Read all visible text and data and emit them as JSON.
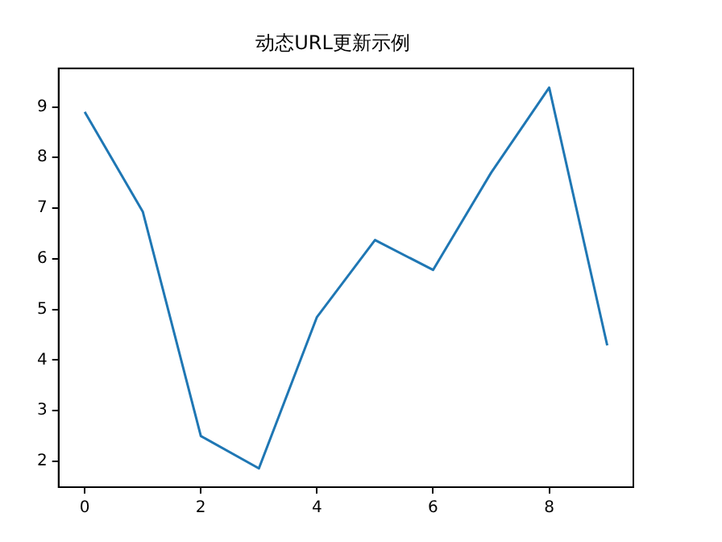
{
  "chart_data": {
    "type": "line",
    "title": "动态URL更新示例",
    "x": [
      0,
      1,
      2,
      3,
      4,
      5,
      6,
      7,
      8,
      9
    ],
    "series": [
      {
        "color": "#1f77b4",
        "values": [
          8.9,
          6.93,
          2.5,
          1.86,
          4.85,
          6.37,
          5.78,
          7.7,
          9.38,
          4.29
        ]
      }
    ],
    "xlim": [
      -0.45,
      9.45
    ],
    "xticks": [
      0,
      2,
      4,
      6,
      8
    ],
    "ylim": [
      1.49,
      9.76
    ],
    "yticks": [
      2,
      3,
      4,
      5,
      6,
      7,
      8,
      9
    ],
    "grid": false,
    "legend": false,
    "marker": "none",
    "line_style": "solid"
  }
}
